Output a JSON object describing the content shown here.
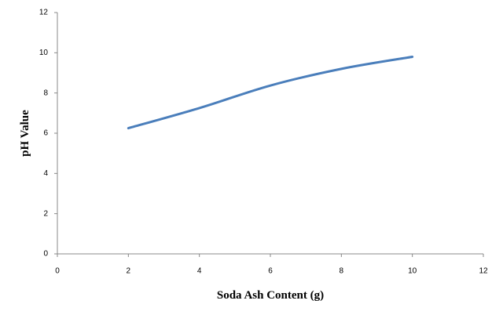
{
  "chart_data": {
    "type": "line",
    "x_label": "Soda Ash Content (g)",
    "y_label": "pH Value",
    "x": [
      2,
      4,
      6,
      8,
      10
    ],
    "series": [
      {
        "name": "pH",
        "color": "#4a7ebb",
        "values": [
          6.25,
          7.25,
          8.37,
          9.2,
          9.8
        ]
      }
    ],
    "xlim": [
      0,
      12
    ],
    "xticks": [
      0,
      2,
      4,
      6,
      8,
      10,
      12
    ],
    "ylim": [
      0,
      12
    ],
    "yticks": [
      0,
      2,
      4,
      6,
      8,
      10,
      12
    ],
    "grid": false,
    "smooth": true
  }
}
